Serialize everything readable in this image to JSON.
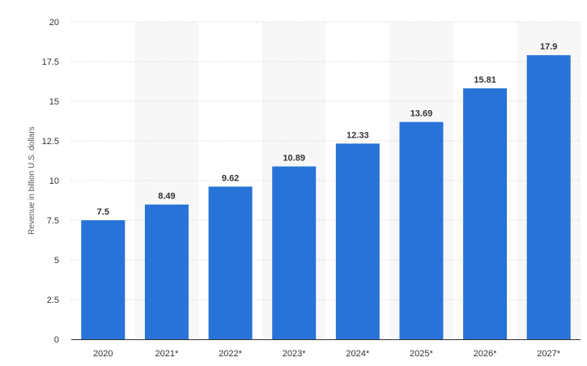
{
  "chart_data": {
    "type": "bar",
    "title": "",
    "xlabel": "",
    "ylabel": "Revenue in billion U.S. dollars",
    "categories": [
      "2020",
      "2021*",
      "2022*",
      "2023*",
      "2024*",
      "2025*",
      "2026*",
      "2027*"
    ],
    "values": [
      7.5,
      8.49,
      9.62,
      10.89,
      12.33,
      13.69,
      15.81,
      17.9
    ],
    "value_labels": [
      "7.5",
      "8.49",
      "9.62",
      "10.89",
      "12.33",
      "13.69",
      "15.81",
      "17.9"
    ],
    "ylim": [
      0,
      20
    ],
    "yticks": [
      0,
      2.5,
      5,
      7.5,
      10,
      12.5,
      15,
      17.5,
      20
    ],
    "ytick_labels": [
      "0",
      "2.5",
      "5",
      "7.5",
      "10",
      "12.5",
      "15",
      "17.5",
      "20"
    ],
    "grid": true,
    "legend": "none",
    "colors": {
      "bar": "#2773d8",
      "grid": "#cccccc",
      "band": "#f7f7f7",
      "axis": "#333333"
    }
  }
}
